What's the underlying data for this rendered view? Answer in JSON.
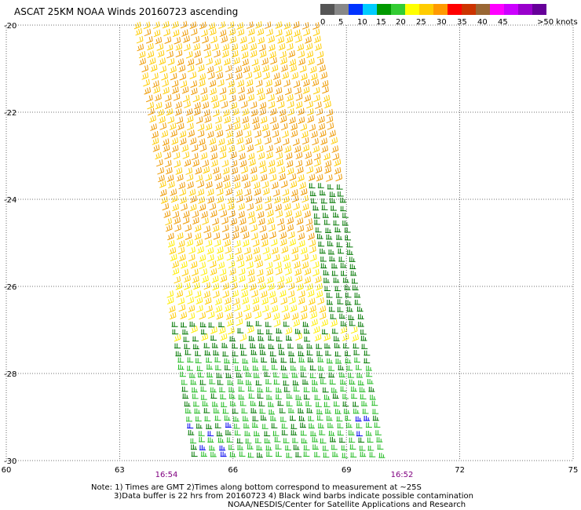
{
  "title": "ASCAT 25KM NOAA Winds 20160723 ascending",
  "legend": {
    "colors": [
      "#555555",
      "#888888",
      "#0033ff",
      "#00ccff",
      "#009900",
      "#33cc33",
      "#ffff00",
      "#ffcc00",
      "#ff9900",
      "#ff0000",
      "#cc3300",
      "#996633",
      "#ff00ff",
      "#cc00ff",
      "#9900cc",
      "#660099"
    ],
    "labels": [
      "0",
      "5",
      "10",
      "15",
      "20",
      "25",
      "30",
      "35",
      "40",
      "45",
      ">50 knots"
    ]
  },
  "axes": {
    "lon_ticks": [
      "60",
      "63",
      "66",
      "69",
      "72",
      "75"
    ],
    "lat_ticks": [
      "-20",
      "-22",
      "-24",
      "-26",
      "-28",
      "-30"
    ]
  },
  "time_labels": {
    "left": "16:54",
    "right": "16:52"
  },
  "notes": {
    "line1": "Note: 1) Times are GMT 2)Times along bottom correspond to measurement at ~25S",
    "line2": "3)Data buffer is 22 hrs from 20160723 4) Black wind barbs indicate possible contamination",
    "line3": "NOAA/NESDIS/Center for Satellite Applications and Research"
  },
  "map_data": {
    "lon_range": [
      60,
      75
    ],
    "lat_range": [
      -30,
      -20
    ],
    "swath_corners": [
      {
        "lon": 63.0,
        "lat": -20.0
      },
      {
        "lon": 68.2,
        "lat": -20.0
      },
      {
        "lon": 70.0,
        "lat": -30.0
      },
      {
        "lon": 64.8,
        "lat": -30.0
      }
    ],
    "wind_zones": [
      {
        "lat_from": -20.0,
        "lat_to": -21.5,
        "color": "#ffcc00",
        "knots": "25-30"
      },
      {
        "lat_from": -21.5,
        "lat_to": -25.0,
        "color": "#ff9900",
        "knots": "25-30"
      },
      {
        "lat_from": -25.0,
        "lat_to": -27.0,
        "color": "#ffdd00",
        "knots": "20-25"
      },
      {
        "lat_from": -27.0,
        "lat_to": -30.0,
        "color": "#009900",
        "knots": "15-20"
      }
    ],
    "barb_colors": {
      "orange": "#ee9900",
      "gold": "#ffcc00",
      "yellow": "#ffee00",
      "dark_green": "#007700",
      "green": "#22bb22",
      "blue": "#0000ee"
    }
  }
}
